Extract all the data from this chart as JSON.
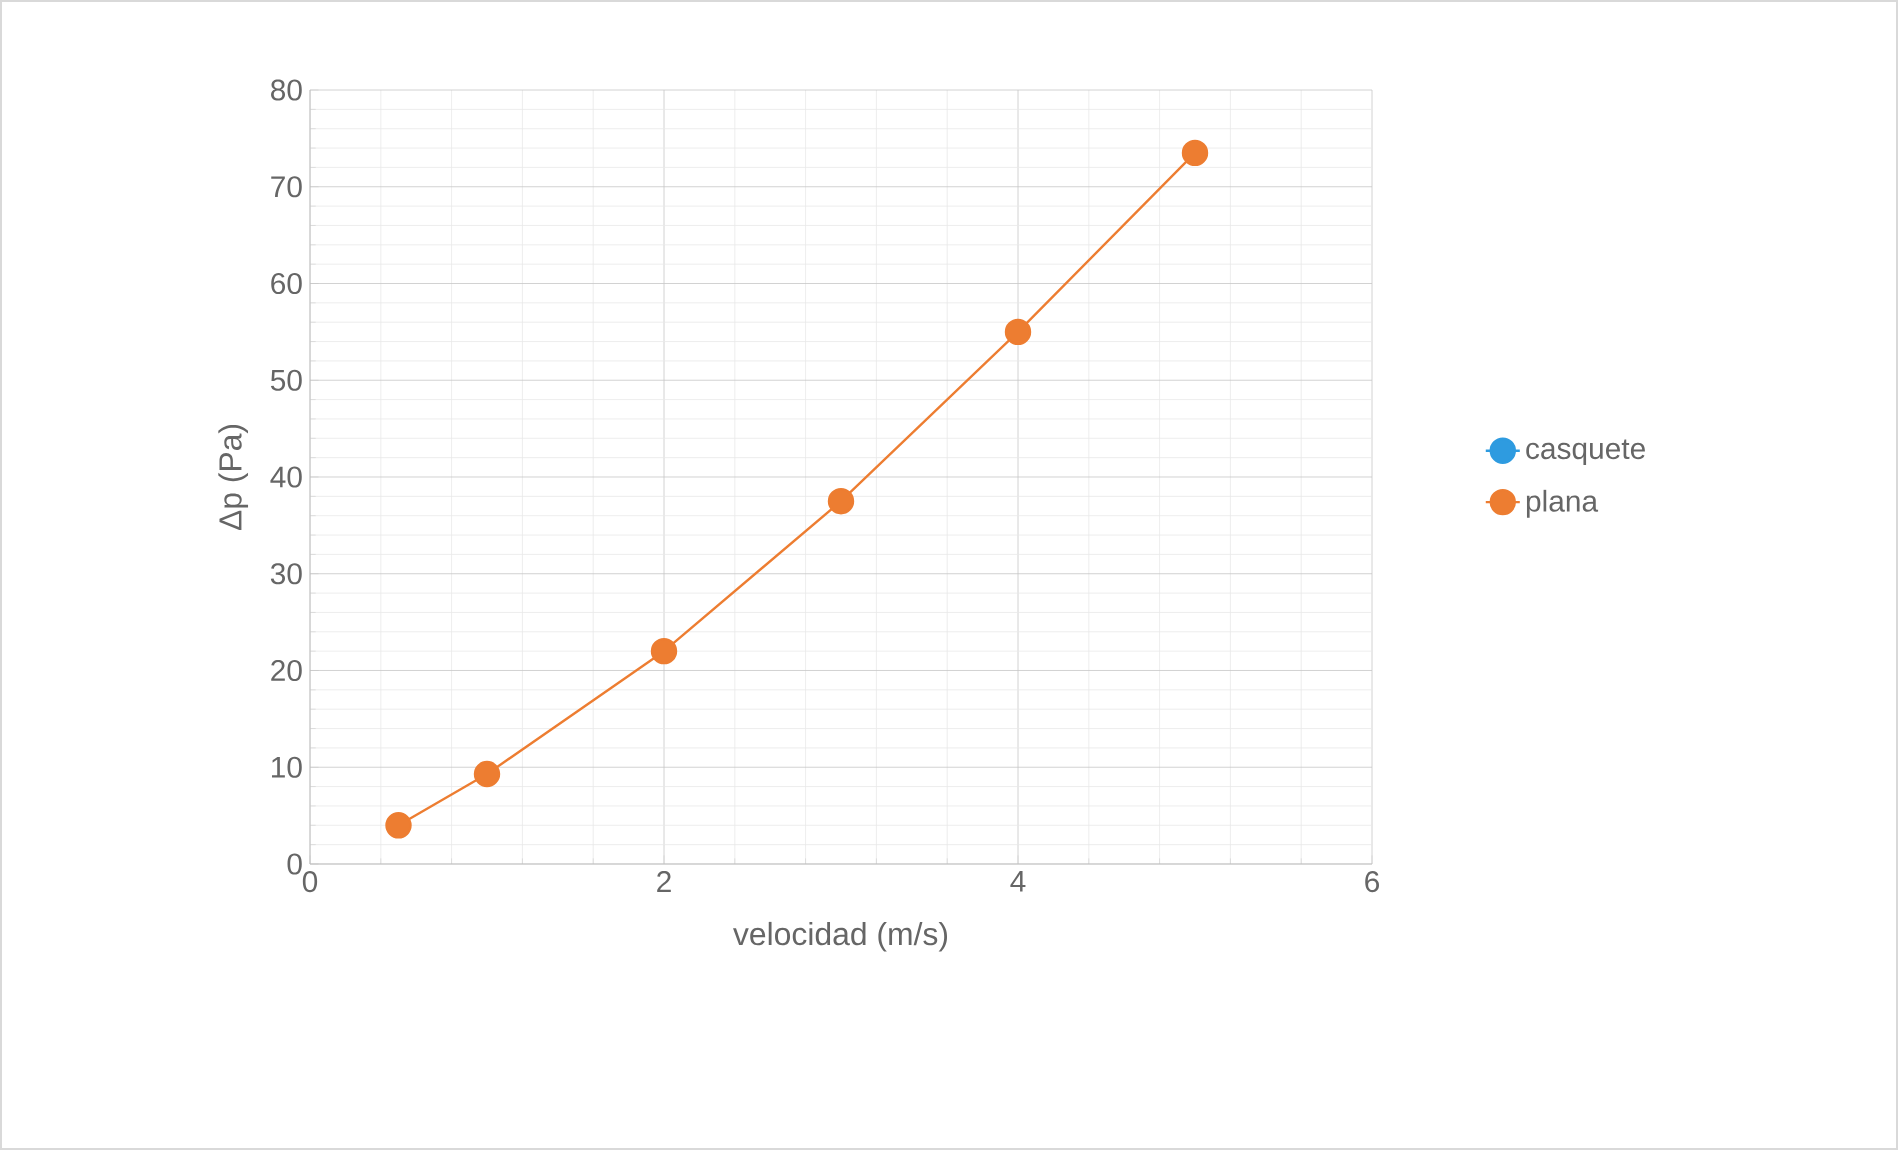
{
  "chart_data": {
    "type": "line",
    "xlabel": "velocidad (m/s)",
    "ylabel": "Δp (Pa)",
    "x": [
      0.5,
      1,
      2,
      3,
      4,
      5
    ],
    "series": [
      {
        "name": "casquete",
        "color": "#2e9be0",
        "values": [
          null,
          null,
          null,
          null,
          null,
          null
        ]
      },
      {
        "name": "plana",
        "color": "#ed7d31",
        "values": [
          4,
          9.3,
          22,
          37.5,
          55,
          73.5
        ]
      }
    ],
    "xlim": [
      0,
      6
    ],
    "xticks": [
      0,
      2,
      4,
      6
    ],
    "ylim": [
      0,
      80
    ],
    "yticks": [
      0,
      10,
      20,
      30,
      40,
      50,
      60,
      70,
      80
    ],
    "grid": true,
    "legend": "right",
    "marker": "circle",
    "line_style": "solid"
  }
}
